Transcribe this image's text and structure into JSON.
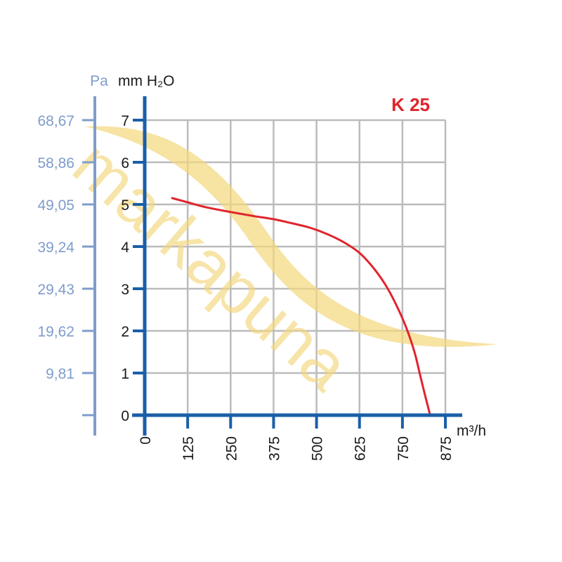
{
  "chart_data": {
    "type": "line",
    "title": "K 25",
    "xlabel": "m³/h",
    "ylabel": "mm H₂O",
    "ylabel_secondary": "Pa",
    "xlim": [
      0,
      875
    ],
    "ylim": [
      0,
      7
    ],
    "x_ticks": [
      0,
      125,
      250,
      375,
      500,
      625,
      750,
      875
    ],
    "y_ticks": [
      0,
      1,
      2,
      3,
      4,
      5,
      6,
      7
    ],
    "pa_ticks": [
      "9,81",
      "19,62",
      "29,43",
      "39,24",
      "49,05",
      "58,86",
      "68,67"
    ],
    "grid": true,
    "series": [
      {
        "x": [
          80,
          125,
          180,
          250,
          320,
          375,
          430,
          480,
          530,
          580,
          625,
          665,
          700,
          730,
          760,
          785,
          800,
          815,
          830
        ],
        "y": [
          5.15,
          5.05,
          4.93,
          4.82,
          4.72,
          4.65,
          4.55,
          4.45,
          4.3,
          4.1,
          3.85,
          3.5,
          3.1,
          2.65,
          2.1,
          1.5,
          1.0,
          0.5,
          0.02
        ]
      }
    ],
    "colors": {
      "axis": "#1a5fa8",
      "pa_axis": "#7f9ccb",
      "grid": "#bbbbbb",
      "curve": "#e1242c",
      "title": "#e1242c",
      "watermark": "#f4d77a"
    }
  },
  "watermark": "markapuna"
}
